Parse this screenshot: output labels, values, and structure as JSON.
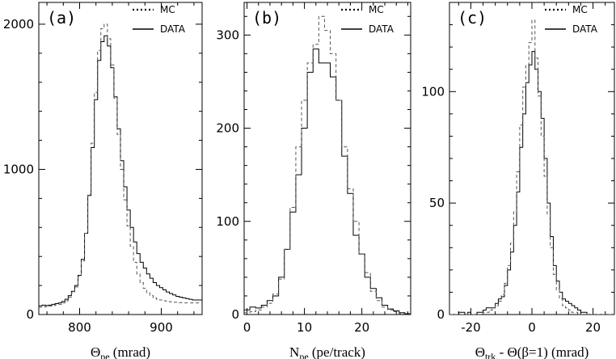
{
  "chart_data": [
    {
      "type": "histogram",
      "panel_label": "(a)",
      "xlabel_main": "Θ",
      "xlabel_sub": "pe",
      "xlabel_rest": " (mrad)",
      "xlim": [
        750,
        950
      ],
      "ylim": [
        0,
        2150
      ],
      "xticks": [
        800,
        900
      ],
      "yticks": [
        0,
        1000,
        2000
      ],
      "legend": {
        "placement": "top-right",
        "entries": [
          "MC",
          "DATA"
        ]
      },
      "bin_edges_start": 750,
      "bin_width": 4,
      "series": [
        {
          "name": "DATA",
          "style": "solid",
          "values": [
            60,
            65,
            62,
            65,
            70,
            75,
            80,
            90,
            105,
            130,
            160,
            200,
            270,
            380,
            560,
            820,
            1150,
            1480,
            1750,
            1880,
            1920,
            1850,
            1700,
            1500,
            1280,
            1060,
            880,
            720,
            600,
            500,
            420,
            360,
            320,
            280,
            250,
            220,
            200,
            185,
            170,
            155,
            145,
            135,
            125,
            120,
            115,
            110,
            105,
            100,
            100,
            100
          ]
        },
        {
          "name": "MC",
          "style": "dashed",
          "values": [
            50,
            52,
            55,
            58,
            62,
            66,
            70,
            80,
            95,
            120,
            150,
            190,
            260,
            370,
            560,
            830,
            1180,
            1530,
            1820,
            1970,
            2000,
            1900,
            1720,
            1490,
            1240,
            1000,
            790,
            610,
            470,
            360,
            280,
            220,
            180,
            150,
            130,
            115,
            105,
            100,
            95,
            90,
            88,
            85,
            85,
            82,
            80,
            80,
            80,
            80,
            80,
            80
          ]
        }
      ]
    },
    {
      "type": "histogram",
      "panel_label": "(b)",
      "xlabel_main": "N",
      "xlabel_sub": "pe",
      "xlabel_rest": " (pe/track)",
      "xlim": [
        -0.5,
        28.5
      ],
      "ylim": [
        0,
        335
      ],
      "xticks": [
        0,
        10,
        20
      ],
      "yticks": [
        0,
        100,
        200,
        300
      ],
      "legend": {
        "placement": "top-right",
        "entries": [
          "MC",
          "DATA"
        ]
      },
      "bin_edges_start": -0.5,
      "bin_width": 1,
      "series": [
        {
          "name": "DATA",
          "style": "solid",
          "values": [
            5,
            8,
            7,
            10,
            15,
            20,
            40,
            70,
            110,
            150,
            200,
            260,
            285,
            270,
            270,
            255,
            230,
            170,
            130,
            85,
            65,
            40,
            28,
            18,
            10,
            6,
            4,
            2,
            1
          ]
        },
        {
          "name": "MC",
          "style": "dashed",
          "values": [
            2,
            3,
            5,
            8,
            12,
            22,
            38,
            70,
            115,
            180,
            230,
            270,
            290,
            320,
            305,
            280,
            230,
            180,
            135,
            100,
            65,
            45,
            25,
            15,
            8,
            5,
            3,
            1,
            1
          ]
        }
      ]
    },
    {
      "type": "histogram",
      "panel_label": "(c)",
      "xlabel_main": "Θ",
      "xlabel_sub": "trk",
      "xlabel_rest": " - Θ(β=1) (mrad)",
      "xlim": [
        -27,
        27
      ],
      "ylim": [
        0,
        140
      ],
      "xticks": [
        -20,
        0,
        20
      ],
      "yticks": [
        0,
        50,
        100
      ],
      "legend": {
        "placement": "top-right",
        "entries": [
          "MC",
          "DATA"
        ]
      },
      "bin_edges_start": -27,
      "bin_width": 1,
      "series": [
        {
          "name": "DATA",
          "style": "solid",
          "values": [
            0,
            0,
            0,
            1,
            1,
            0,
            1,
            0,
            0,
            1,
            1,
            2,
            3,
            3,
            3,
            5,
            7,
            8,
            13,
            20,
            28,
            40,
            55,
            75,
            90,
            104,
            112,
            118,
            110,
            100,
            88,
            70,
            50,
            35,
            22,
            15,
            10,
            7,
            6,
            5,
            4,
            3,
            2,
            1,
            1,
            0,
            0,
            0,
            0,
            0,
            0,
            0,
            0,
            0
          ]
        },
        {
          "name": "MC",
          "style": "dashed",
          "values": [
            0,
            0,
            0,
            0,
            0,
            0,
            0,
            0,
            0,
            0,
            0,
            1,
            1,
            2,
            3,
            4,
            6,
            9,
            14,
            22,
            32,
            46,
            64,
            85,
            102,
            112,
            122,
            132,
            115,
            98,
            80,
            62,
            45,
            30,
            18,
            11,
            7,
            4,
            3,
            2,
            1,
            1,
            0,
            0,
            0,
            0,
            0,
            0,
            0,
            0,
            0,
            0,
            0,
            0
          ]
        }
      ]
    }
  ]
}
